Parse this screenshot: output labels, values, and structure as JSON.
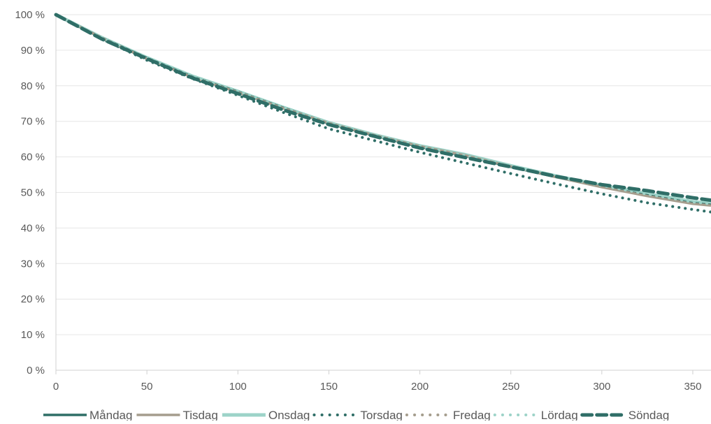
{
  "chart_data": {
    "type": "line",
    "title": "",
    "xlabel": "",
    "ylabel": "",
    "xlim": [
      0,
      360
    ],
    "ylim": [
      0,
      100
    ],
    "x_ticks": [
      0,
      50,
      100,
      150,
      200,
      250,
      300,
      350
    ],
    "y_ticks": [
      0,
      10,
      20,
      30,
      40,
      50,
      60,
      70,
      80,
      90,
      100
    ],
    "y_tick_suffix": " %",
    "grid": "horizontal",
    "legend_position": "bottom",
    "x": [
      0,
      25,
      50,
      75,
      100,
      125,
      150,
      175,
      200,
      225,
      250,
      275,
      300,
      325,
      350,
      360
    ],
    "series": [
      {
        "name": "Måndag",
        "color": "#2f6e67",
        "style": "solid",
        "values": [
          100,
          93.5,
          87.8,
          82.5,
          78.3,
          73.8,
          69.4,
          66.0,
          62.8,
          60.3,
          57.2,
          54.3,
          51.6,
          49.2,
          47.0,
          46.5
        ]
      },
      {
        "name": "Tisdag",
        "color": "#a59d8d",
        "style": "solid",
        "values": [
          100,
          93.5,
          87.6,
          82.4,
          78.2,
          73.7,
          69.5,
          66.1,
          63.0,
          60.4,
          57.3,
          54.3,
          51.5,
          49.0,
          46.8,
          46.3
        ]
      },
      {
        "name": "Onsdag",
        "color": "#9dd3c8",
        "style": "solid-thick",
        "values": [
          100,
          93.6,
          87.9,
          82.7,
          78.4,
          73.9,
          69.6,
          66.2,
          63.1,
          60.6,
          57.5,
          54.6,
          52.0,
          49.6,
          47.4,
          46.9
        ]
      },
      {
        "name": "Torsdag",
        "color": "#2f6e67",
        "style": "dotted",
        "values": [
          100,
          93.2,
          87.2,
          82.0,
          77.3,
          72.5,
          67.9,
          64.6,
          61.3,
          58.3,
          55.3,
          52.4,
          49.6,
          47.1,
          45.2,
          44.5
        ]
      },
      {
        "name": "Fredag",
        "color": "#a59d8d",
        "style": "dotted",
        "values": [
          100,
          93.5,
          87.7,
          82.5,
          78.2,
          73.7,
          69.5,
          66.1,
          63.0,
          60.5,
          57.3,
          54.4,
          51.7,
          49.3,
          47.1,
          46.6
        ]
      },
      {
        "name": "Lördag",
        "color": "#9dd3c8",
        "style": "dotted",
        "values": [
          100,
          93.6,
          88.0,
          82.8,
          78.5,
          74.0,
          69.7,
          66.2,
          63.0,
          60.4,
          57.4,
          54.5,
          51.9,
          49.5,
          47.3,
          46.8
        ]
      },
      {
        "name": "Söndag",
        "color": "#2f6e67",
        "style": "dashed",
        "values": [
          100,
          93.2,
          87.6,
          82.2,
          77.8,
          73.2,
          69.1,
          65.8,
          62.5,
          59.8,
          57.2,
          54.5,
          52.2,
          50.5,
          48.5,
          47.8
        ]
      }
    ]
  }
}
